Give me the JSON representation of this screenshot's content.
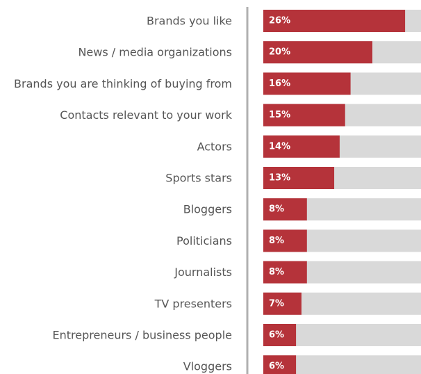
{
  "chart_data": {
    "type": "bar",
    "orientation": "horizontal",
    "categories": [
      "Brands you like",
      "News / media organizations",
      "Brands you are thinking of buying from",
      "Contacts relevant to your work",
      "Actors",
      "Sports stars",
      "Bloggers",
      "Politicians",
      "Journalists",
      "TV presenters",
      "Entrepreneurs / business people",
      "Vloggers"
    ],
    "values": [
      26,
      20,
      16,
      15,
      14,
      13,
      8,
      8,
      8,
      7,
      6,
      6
    ],
    "value_labels": [
      "26%",
      "20%",
      "16%",
      "15%",
      "14%",
      "13%",
      "8%",
      "8%",
      "8%",
      "7%",
      "6%",
      "6%"
    ],
    "xlim": [
      0,
      100
    ],
    "grid": false,
    "legend": "none",
    "colors": {
      "bar": "#b5333a",
      "track": "#d9d9d9",
      "axis": "#b0b0b0",
      "label": "#555555",
      "value_text": "#ffffff"
    }
  }
}
